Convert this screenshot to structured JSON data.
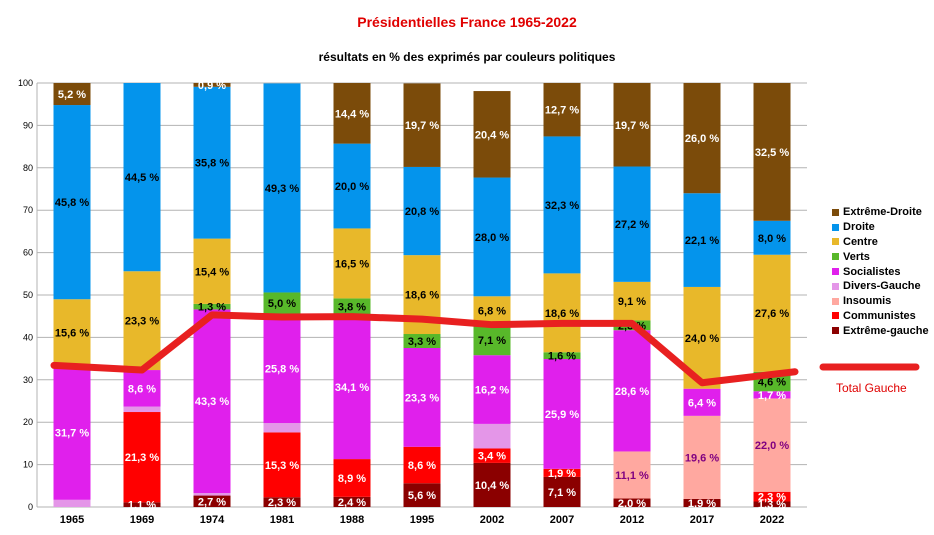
{
  "chart_data": {
    "type": "bar",
    "stacked": true,
    "title": "Présidentielles France 1965-2022",
    "subtitle": "résultats en % des exprimés par couleurs politiques",
    "categories": [
      "1965",
      "1969",
      "1974",
      "1981",
      "1988",
      "1995",
      "2002",
      "2007",
      "2012",
      "2017",
      "2022"
    ],
    "ylim": [
      0,
      100
    ],
    "yticks": [
      0,
      10,
      20,
      30,
      40,
      50,
      60,
      70,
      80,
      90,
      100
    ],
    "grid": true,
    "legend_position": "right",
    "series": [
      {
        "name": "Extrême-gauche",
        "color": "#8b0000",
        "values": [
          0,
          1.1,
          2.7,
          2.3,
          2.4,
          5.6,
          10.4,
          7.1,
          2.0,
          1.9,
          1.3
        ],
        "labels": [
          "",
          "1,1 %",
          "2,7 %",
          "2,3 %",
          "2,4 %",
          "5,6 %",
          "10,4 %",
          "7,1 %",
          "2,0 %",
          "1,9 %",
          "1,3 %"
        ],
        "label_color": "#ffffff"
      },
      {
        "name": "Communistes",
        "color": "#ff0000",
        "values": [
          0,
          21.3,
          0,
          15.3,
          8.9,
          8.6,
          3.4,
          1.9,
          0,
          0,
          2.3
        ],
        "labels": [
          "",
          "21,3 %",
          "",
          "15,3 %",
          "8,9 %",
          "8,6 %",
          "3,4 %",
          "1,9 %",
          "",
          "",
          "2,3 %"
        ],
        "label_color": "#ffffff"
      },
      {
        "name": "Insoumis",
        "color": "#ffa8a0",
        "values": [
          0,
          0,
          0,
          0,
          0,
          0,
          0,
          0,
          11.1,
          19.6,
          22.0
        ],
        "labels": [
          "",
          "",
          "",
          "",
          "",
          "",
          "",
          "",
          "11,1 %",
          "19,6 %",
          "22,0 %"
        ],
        "label_color": "#800080"
      },
      {
        "name": "Divers-Gauche",
        "color": "#e496e8",
        "values": [
          1.7,
          1.3,
          0.6,
          2.2,
          0,
          0,
          5.8,
          0,
          0,
          0,
          0
        ],
        "labels": [
          "",
          "",
          "",
          "",
          "",
          "",
          "",
          "",
          "",
          "",
          ""
        ],
        "label_color": "#ffffff"
      },
      {
        "name": "Socialistes",
        "color": "#e020ec",
        "values": [
          31.7,
          8.6,
          43.3,
          25.8,
          34.1,
          23.3,
          16.2,
          25.9,
          28.6,
          6.4,
          1.7
        ],
        "labels": [
          "31,7 %",
          "8,6 %",
          "43,3 %",
          "25,8 %",
          "34,1 %",
          "23,3 %",
          "16,2 %",
          "25,9 %",
          "28,6 %",
          "6,4 %",
          "1,7 %"
        ],
        "label_color": "#ffffff"
      },
      {
        "name": "Verts",
        "color": "#58b82a",
        "values": [
          0,
          0,
          1.3,
          5.0,
          3.8,
          3.3,
          7.1,
          1.6,
          2.3,
          0,
          4.6
        ],
        "labels": [
          "",
          "",
          "1,3 %",
          "5,0 %",
          "3,8 %",
          "3,3 %",
          "7,1 %",
          "1,6 %",
          "2,3 %",
          "",
          "4,6 %"
        ],
        "label_color": "#000000"
      },
      {
        "name": "Centre",
        "color": "#e8b82a",
        "values": [
          15.6,
          23.3,
          15.4,
          0,
          16.5,
          18.6,
          6.8,
          18.6,
          9.1,
          24.0,
          27.6
        ],
        "labels": [
          "15,6 %",
          "23,3 %",
          "15,4 %",
          "",
          "16,5 %",
          "18,6 %",
          "6,8 %",
          "18,6 %",
          "9,1 %",
          "24,0 %",
          "27,6 %"
        ],
        "label_color": "#000000"
      },
      {
        "name": "Droite",
        "color": "#0494ec",
        "values": [
          45.8,
          44.5,
          35.8,
          49.3,
          20.0,
          20.8,
          28.0,
          32.3,
          27.2,
          22.1,
          8.0
        ],
        "labels": [
          "45,8 %",
          "44,5 %",
          "35,8 %",
          "49,3 %",
          "20,0 %",
          "20,8 %",
          "28,0 %",
          "32,3 %",
          "27,2 %",
          "22,1 %",
          "8,0 %"
        ],
        "label_color": "#000000"
      },
      {
        "name": "Extrême-Droite",
        "color": "#7b4b0a",
        "values": [
          5.2,
          0,
          0.9,
          0,
          14.4,
          19.7,
          20.4,
          12.7,
          19.7,
          26.0,
          32.5
        ],
        "labels": [
          "5,2 %",
          "",
          "0,9 %",
          "",
          "14,4 %",
          "19,7 %",
          "20,4 %",
          "12,7 %",
          "19,7 %",
          "26,0 %",
          "32,5 %"
        ],
        "label_color": "#ffffff"
      }
    ],
    "line": {
      "name": "Total Gauche",
      "color": "#e82020",
      "values": [
        33.4,
        32.3,
        45.3,
        44.8,
        44.9,
        44.3,
        43.0,
        43.3,
        43.3,
        29.3,
        31.9
      ]
    },
    "legend_order": [
      "Extrême-Droite",
      "Droite",
      "Centre",
      "Verts",
      "Socialistes",
      "Divers-Gauche",
      "Insoumis",
      "Communistes",
      "Extrême-gauche"
    ]
  }
}
